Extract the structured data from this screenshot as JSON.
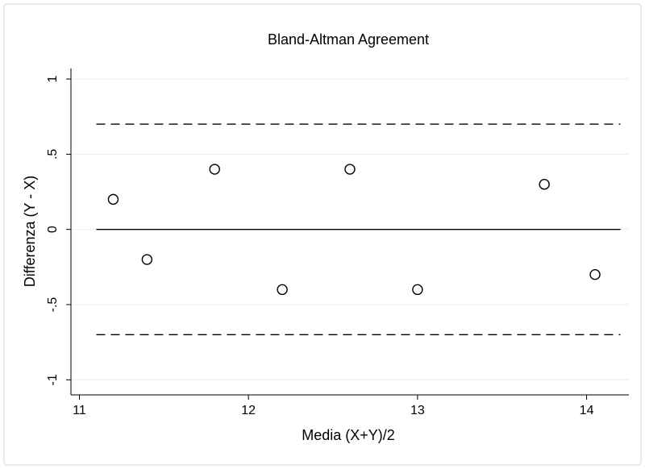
{
  "chart_data": {
    "type": "scatter",
    "title": "Bland-Altman Agreement",
    "x_label": "Media (X+Y)/2",
    "y_label": "Differenza (Y - X)",
    "x": [
      11.2,
      11.4,
      11.8,
      12.2,
      12.6,
      13.0,
      13.75,
      14.05
    ],
    "values": [
      0.2,
      -0.2,
      0.4,
      -0.4,
      0.4,
      -0.4,
      0.3,
      -0.3
    ],
    "color": "#000000",
    "xlim": [
      10.95,
      14.25
    ],
    "xticks": [
      11,
      12,
      13,
      14
    ],
    "ylim": [
      -1.1,
      1.07
    ],
    "yticks": [
      {
        "value": -1,
        "label": "-1"
      },
      {
        "value": -0.5,
        "label": "-.5"
      },
      0,
      {
        "value": 0.5,
        "label": ".5"
      },
      1
    ],
    "grid": true,
    "reference_lines": [
      {
        "y": 0.7,
        "x": [
          11.1,
          14.2
        ],
        "style": "dashed"
      },
      {
        "y": 0,
        "x": [
          11.1,
          14.2
        ],
        "style": "solid"
      },
      {
        "y": -0.7,
        "x": [
          11.1,
          14.2
        ],
        "style": "dashed"
      }
    ]
  }
}
